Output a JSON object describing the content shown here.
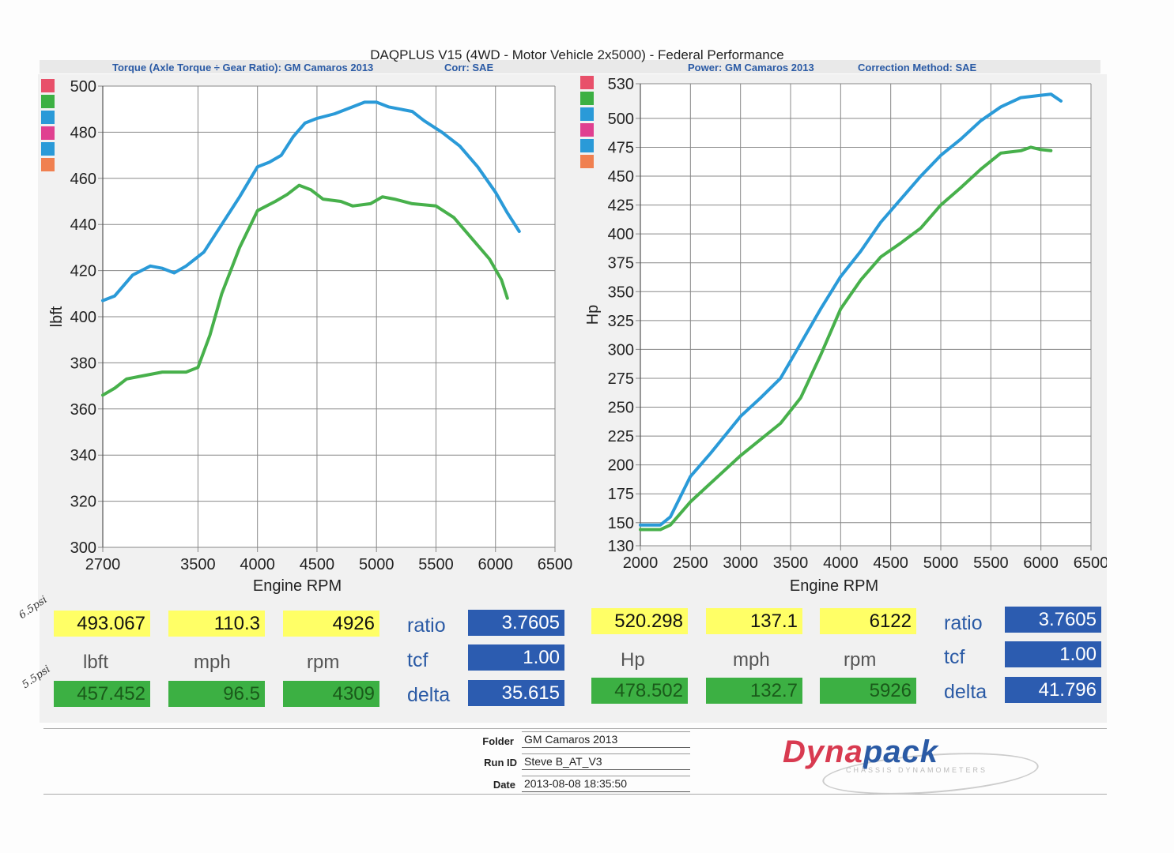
{
  "title": "DAQPLUS V15 (4WD - Motor Vehicle 2x5000) - Federal Performance",
  "torque_header": "Torque (Axle Torque ÷ Gear Ratio): GM Camaros 2013",
  "torque_corr": "Corr: SAE",
  "power_header": "Power: GM Camaros 2013",
  "power_corr": "Correction Method: SAE",
  "colors": {
    "blue_run": "#2a9ad8",
    "green_run": "#47b04b",
    "legend": [
      "#e8506a",
      "#3cb043",
      "#2a9ad8",
      "#e04090",
      "#2a9ad8",
      "#f08050"
    ]
  },
  "chart_data": [
    {
      "type": "line",
      "xlabel": "Engine RPM",
      "ylabel": "lbft",
      "xlim": [
        2700,
        6500
      ],
      "ylim": [
        300,
        500
      ],
      "x_ticks": [
        2700,
        3500,
        4000,
        4500,
        5000,
        5500,
        6000,
        6500
      ],
      "y_ticks": [
        300,
        320,
        340,
        360,
        380,
        400,
        420,
        440,
        460,
        480,
        500
      ],
      "grid": true,
      "series": [
        {
          "color": "#2a9ad8",
          "points": [
            [
              2700,
              407
            ],
            [
              2800,
              409
            ],
            [
              2950,
              418
            ],
            [
              3100,
              422
            ],
            [
              3200,
              421
            ],
            [
              3300,
              419
            ],
            [
              3400,
              422
            ],
            [
              3550,
              428
            ],
            [
              3700,
              440
            ],
            [
              3850,
              452
            ],
            [
              4000,
              465
            ],
            [
              4100,
              467
            ],
            [
              4200,
              470
            ],
            [
              4300,
              478
            ],
            [
              4400,
              484
            ],
            [
              4500,
              486
            ],
            [
              4650,
              488
            ],
            [
              4800,
              491
            ],
            [
              4900,
              493
            ],
            [
              5000,
              493
            ],
            [
              5100,
              491
            ],
            [
              5200,
              490
            ],
            [
              5300,
              489
            ],
            [
              5400,
              485
            ],
            [
              5550,
              480
            ],
            [
              5700,
              474
            ],
            [
              5850,
              465
            ],
            [
              6000,
              454
            ],
            [
              6100,
              445
            ],
            [
              6200,
              437
            ]
          ]
        },
        {
          "color": "#47b04b",
          "points": [
            [
              2700,
              366
            ],
            [
              2800,
              369
            ],
            [
              2900,
              373
            ],
            [
              3000,
              374
            ],
            [
              3100,
              375
            ],
            [
              3200,
              376
            ],
            [
              3400,
              376
            ],
            [
              3500,
              378
            ],
            [
              3600,
              392
            ],
            [
              3700,
              410
            ],
            [
              3850,
              430
            ],
            [
              4000,
              446
            ],
            [
              4150,
              450
            ],
            [
              4250,
              453
            ],
            [
              4350,
              457
            ],
            [
              4450,
              455
            ],
            [
              4550,
              451
            ],
            [
              4700,
              450
            ],
            [
              4800,
              448
            ],
            [
              4950,
              449
            ],
            [
              5050,
              452
            ],
            [
              5150,
              451
            ],
            [
              5300,
              449
            ],
            [
              5500,
              448
            ],
            [
              5650,
              443
            ],
            [
              5800,
              434
            ],
            [
              5950,
              425
            ],
            [
              6050,
              416
            ],
            [
              6100,
              408
            ]
          ]
        }
      ]
    },
    {
      "type": "line",
      "xlabel": "Engine RPM",
      "ylabel": "Hp",
      "xlim": [
        2000,
        6500
      ],
      "ylim": [
        130,
        530
      ],
      "x_ticks": [
        2000,
        2500,
        3000,
        3500,
        4000,
        4500,
        5000,
        5500,
        6000,
        6500
      ],
      "y_ticks": [
        130,
        150,
        175,
        200,
        225,
        250,
        275,
        300,
        325,
        350,
        375,
        400,
        425,
        450,
        475,
        500,
        530
      ],
      "grid": true,
      "series": [
        {
          "color": "#2a9ad8",
          "points": [
            [
              2000,
              148
            ],
            [
              2100,
              148
            ],
            [
              2200,
              148
            ],
            [
              2300,
              155
            ],
            [
              2500,
              190
            ],
            [
              2700,
              210
            ],
            [
              3000,
              242
            ],
            [
              3200,
              258
            ],
            [
              3400,
              275
            ],
            [
              3600,
              305
            ],
            [
              3800,
              335
            ],
            [
              4000,
              363
            ],
            [
              4200,
              385
            ],
            [
              4400,
              410
            ],
            [
              4600,
              430
            ],
            [
              4800,
              450
            ],
            [
              5000,
              468
            ],
            [
              5200,
              482
            ],
            [
              5400,
              498
            ],
            [
              5600,
              510
            ],
            [
              5800,
              518
            ],
            [
              6000,
              520
            ],
            [
              6100,
              521
            ],
            [
              6200,
              515
            ]
          ]
        },
        {
          "color": "#47b04b",
          "points": [
            [
              2000,
              144
            ],
            [
              2200,
              144
            ],
            [
              2300,
              148
            ],
            [
              2500,
              168
            ],
            [
              2800,
              192
            ],
            [
              3000,
              208
            ],
            [
              3200,
              222
            ],
            [
              3400,
              236
            ],
            [
              3600,
              258
            ],
            [
              3800,
              295
            ],
            [
              4000,
              335
            ],
            [
              4200,
              360
            ],
            [
              4400,
              380
            ],
            [
              4600,
              392
            ],
            [
              4800,
              405
            ],
            [
              5000,
              425
            ],
            [
              5200,
              440
            ],
            [
              5400,
              456
            ],
            [
              5600,
              470
            ],
            [
              5800,
              472
            ],
            [
              5900,
              475
            ],
            [
              6000,
              473
            ],
            [
              6100,
              472
            ]
          ]
        }
      ]
    }
  ],
  "readout_left": {
    "max_values": [
      "493.067",
      "110.3",
      "4926"
    ],
    "units": [
      "lbft",
      "mph",
      "rpm"
    ],
    "min_values": [
      "457.452",
      "96.5",
      "4309"
    ],
    "labels": [
      "ratio",
      "tcf",
      "delta"
    ],
    "stats": [
      "3.7605",
      "1.00",
      "35.615"
    ]
  },
  "readout_right": {
    "max_values": [
      "520.298",
      "137.1",
      "6122"
    ],
    "units": [
      "Hp",
      "mph",
      "rpm"
    ],
    "min_values": [
      "478.502",
      "132.7",
      "5926"
    ],
    "labels": [
      "ratio",
      "tcf",
      "delta"
    ],
    "stats": [
      "3.7605",
      "1.00",
      "41.796"
    ]
  },
  "info": {
    "folder_label": "Folder",
    "folder": "GM Camaros 2013",
    "run_label": "Run ID",
    "run": "Steve B_AT_V3",
    "date_label": "Date",
    "date": "2013-08-08 18:35:50"
  },
  "brand": "Dynapack",
  "brand_sub": "CHASSIS DYNAMOMETERS",
  "handwritten": [
    "6.5psi",
    "5.5psi"
  ]
}
